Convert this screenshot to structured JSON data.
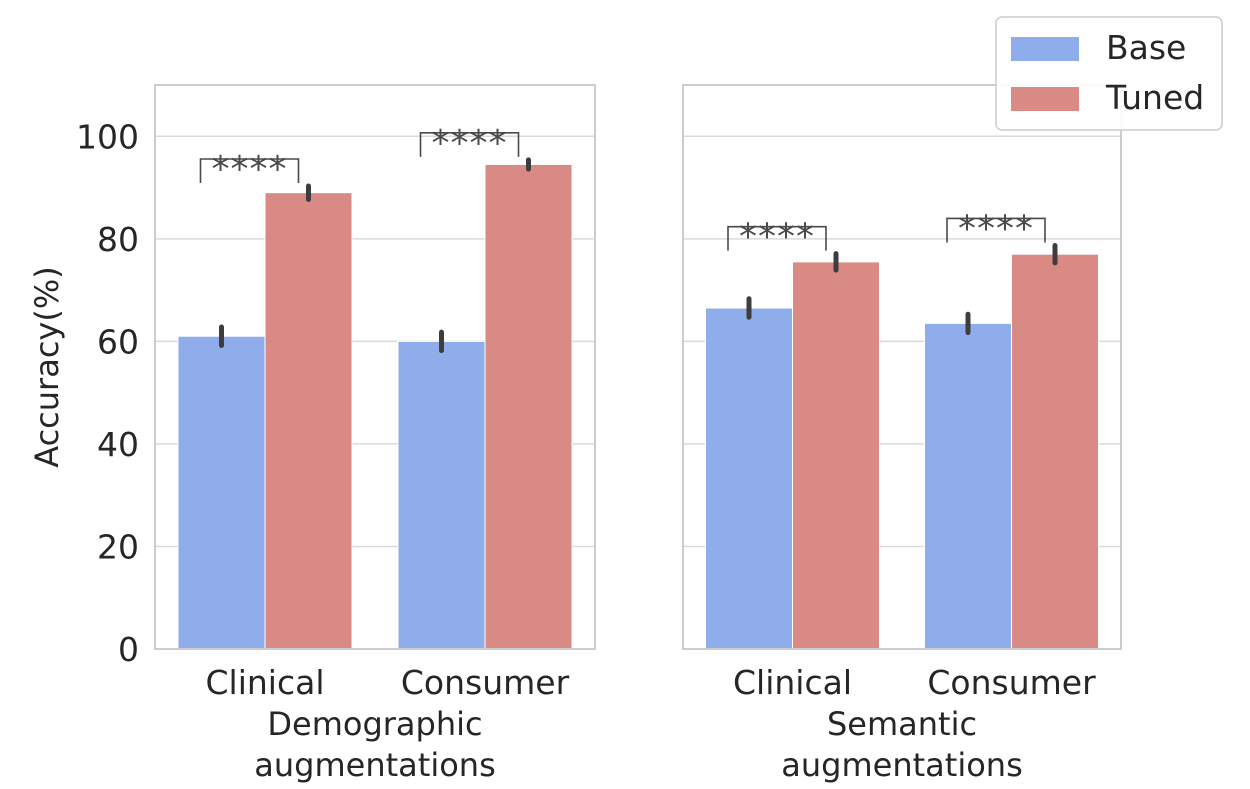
{
  "chart_data": {
    "type": "bar",
    "ylabel": "Accuracy(%)",
    "ylim": [
      0,
      110
    ],
    "yticks": [
      "0",
      "20",
      "40",
      "60",
      "80",
      "100"
    ],
    "grid": true,
    "legend_position": "top-right",
    "series": [
      {
        "name": "Base",
        "color": "#8fadeb"
      },
      {
        "name": "Tuned",
        "color": "#d98a85"
      }
    ],
    "panels": [
      {
        "xlabel_line1": "Demographic",
        "xlabel_line2": "augmentations",
        "categories": [
          "Clinical",
          "Consumer"
        ],
        "values": {
          "Base": [
            61,
            60
          ],
          "Tuned": [
            89,
            94.5
          ]
        },
        "errors": {
          "Base": [
            1.8,
            1.8
          ],
          "Tuned": [
            1.3,
            0.9
          ]
        },
        "annotations": [
          "****",
          "****"
        ]
      },
      {
        "xlabel_line1": "Semantic",
        "xlabel_line2": "augmentations",
        "categories": [
          "Clinical",
          "Consumer"
        ],
        "values": {
          "Base": [
            66.5,
            63.5
          ],
          "Tuned": [
            75.5,
            77
          ]
        },
        "errors": {
          "Base": [
            1.8,
            1.8
          ],
          "Tuned": [
            1.6,
            1.7
          ]
        },
        "annotations": [
          "****",
          "****"
        ]
      }
    ]
  }
}
